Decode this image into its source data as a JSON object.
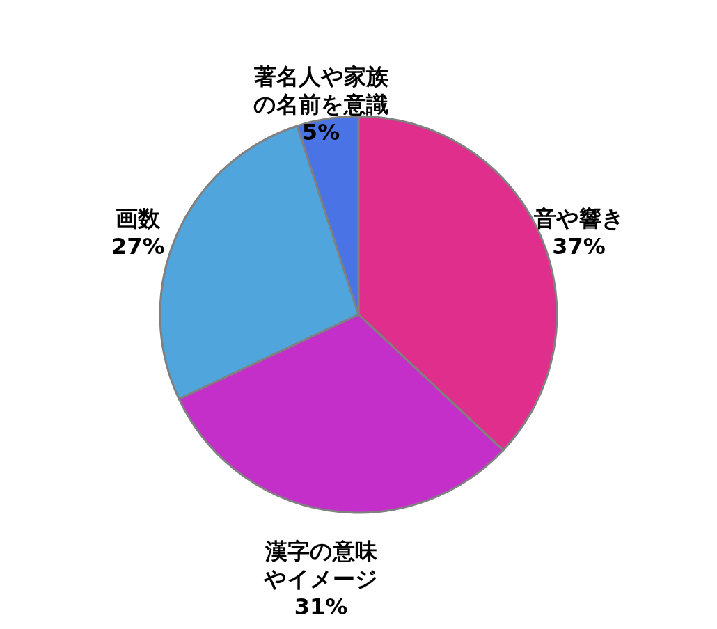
{
  "chart_data": {
    "type": "pie",
    "categories": [
      "音や響き",
      "漢字の意味やイメージ",
      "画数",
      "著名人や家族の名前を意識"
    ],
    "values": [
      37,
      31,
      27,
      5
    ],
    "value_labels": [
      "37%",
      "31%",
      "27%",
      "5%"
    ],
    "colors": [
      "#e02e8c",
      "#c42fca",
      "#4fa5dc",
      "#4a73e6"
    ]
  }
}
